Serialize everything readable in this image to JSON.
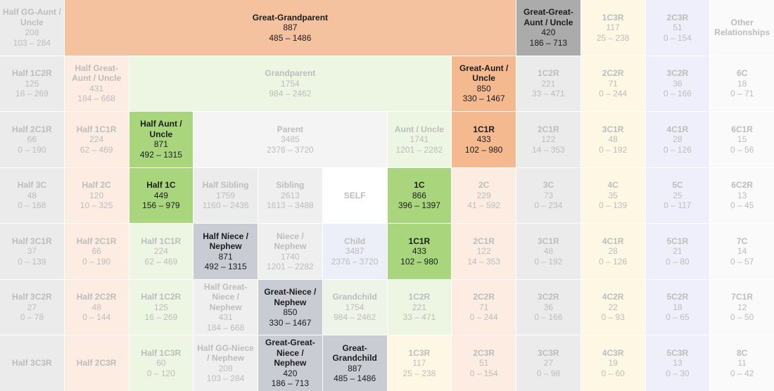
{
  "grid": {
    "rows": [
      [
        {
          "label": "Half GG-Aunt / Uncle",
          "avg": 208,
          "range": "103 – 284",
          "color": "#ebebeb"
        },
        {
          "label": "Great-Grandparent",
          "avg": 887,
          "range": "485 – 1486",
          "color": "#f4c29e",
          "span": 7,
          "highlight": true
        },
        {
          "label": "Great-Great-Aunt / Uncle",
          "avg": 420,
          "range": "186 – 713",
          "color": "#ababab",
          "highlight": true
        },
        {
          "label": "1C3R",
          "avg": 117,
          "range": "25 – 238",
          "color": "#fdf7e4"
        },
        {
          "label": "2C3R",
          "avg": 51,
          "range": "0 – 154",
          "color": "#efeefb"
        },
        {
          "label": "Other Relationships",
          "color": "#fafafa"
        }
      ],
      [
        {
          "label": "Half 1C2R",
          "avg": 125,
          "range": "16 – 269",
          "color": "#ebebeb"
        },
        {
          "label": "Half Great-Aunt / Uncle",
          "avg": 431,
          "range": "184 – 668",
          "color": "#fcece2"
        },
        {
          "label": "Grandparent",
          "avg": 1754,
          "range": "984 – 2462",
          "color": "#ecf6e2",
          "span": 5
        },
        {
          "label": "Great-Aunt / Uncle",
          "avg": 850,
          "range": "330 – 1467",
          "color": "#f4b98f",
          "highlight": true
        },
        {
          "label": "1C2R",
          "avg": 221,
          "range": "33 – 471",
          "color": "#ebebeb"
        },
        {
          "label": "2C2R",
          "avg": 71,
          "range": "0 – 244",
          "color": "#fdf7e4"
        },
        {
          "label": "3C2R",
          "avg": 36,
          "range": "0 – 166",
          "color": "#efeefb"
        },
        {
          "label": "6C",
          "avg": 18,
          "range": "0 – 71",
          "color": "#fafafa"
        }
      ],
      [
        {
          "label": "Half 2C1R",
          "avg": 66,
          "range": "0 – 190",
          "color": "#ebebeb"
        },
        {
          "label": "Half 1C1R",
          "avg": 224,
          "range": "62 – 469",
          "color": "#fcece2"
        },
        {
          "label": "Half Aunt / Uncle",
          "avg": 871,
          "range": "492 – 1315",
          "color": "#a9d67c",
          "highlight": true
        },
        {
          "label": "Parent",
          "avg": 3485,
          "range": "2376 – 3720",
          "color": "#f4f4f4",
          "span": 3
        },
        {
          "label": "Aunt / Uncle",
          "avg": 1741,
          "range": "1201 – 2282",
          "color": "#ecf6e2"
        },
        {
          "label": "1C1R",
          "avg": 433,
          "range": "102 – 980",
          "color": "#f4b98f",
          "highlight": true
        },
        {
          "label": "2C1R",
          "avg": 122,
          "range": "14 – 353",
          "color": "#ebebeb"
        },
        {
          "label": "3C1R",
          "avg": 48,
          "range": "0 – 192",
          "color": "#fdf7e4"
        },
        {
          "label": "4C1R",
          "avg": 28,
          "range": "0 – 126",
          "color": "#efeefb"
        },
        {
          "label": "6C1R",
          "avg": 15,
          "range": "0 – 56",
          "color": "#fafafa"
        }
      ],
      [
        {
          "label": "Half 3C",
          "avg": 48,
          "range": "0 – 168",
          "color": "#ebebeb"
        },
        {
          "label": "Half 2C",
          "avg": 120,
          "range": "10 – 325",
          "color": "#fcece2"
        },
        {
          "label": "Half 1C",
          "avg": 449,
          "range": "156 – 979",
          "color": "#a9d67c",
          "highlight": true
        },
        {
          "label": "Half Sibling",
          "avg": 1759,
          "range": "1160 – 2436",
          "color": "#ececec"
        },
        {
          "label": "Sibling",
          "avg": 2613,
          "range": "1613 – 3488",
          "color": "#efefef"
        },
        {
          "label": "SELF",
          "color": "#ffffff"
        },
        {
          "label": "1C",
          "avg": 866,
          "range": "396 – 1397",
          "color": "#a9d67c",
          "highlight": true
        },
        {
          "label": "2C",
          "avg": 229,
          "range": "41 – 592",
          "color": "#fcece2"
        },
        {
          "label": "3C",
          "avg": 73,
          "range": "0 – 234",
          "color": "#ebebeb"
        },
        {
          "label": "4C",
          "avg": 35,
          "range": "0 – 139",
          "color": "#fdf7e4"
        },
        {
          "label": "5C",
          "avg": 25,
          "range": "0 – 117",
          "color": "#efeefb"
        },
        {
          "label": "6C2R",
          "avg": 13,
          "range": "0 – 45",
          "color": "#fafafa"
        }
      ],
      [
        {
          "label": "Half 3C1R",
          "avg": 37,
          "range": "0 – 139",
          "color": "#ebebeb"
        },
        {
          "label": "Half 2C1R",
          "avg": 66,
          "range": "0 – 190",
          "color": "#fcece2"
        },
        {
          "label": "Half 1C1R",
          "avg": 224,
          "range": "62 – 469",
          "color": "#ecf6e2"
        },
        {
          "label": "Half Niece / Nephew",
          "avg": 871,
          "range": "492 – 1315",
          "color": "#c9ccd3",
          "highlight": true
        },
        {
          "label": "Niece / Nephew",
          "avg": 1740,
          "range": "1201 – 2282",
          "color": "#efefef"
        },
        {
          "label": "Child",
          "avg": 3487,
          "range": "2376 – 3720",
          "color": "#eceef8"
        },
        {
          "label": "1C1R",
          "avg": 433,
          "range": "102 – 980",
          "color": "#a9d67c",
          "highlight": true
        },
        {
          "label": "2C1R",
          "avg": 122,
          "range": "14 – 353",
          "color": "#fcece2"
        },
        {
          "label": "3C1R",
          "avg": 48,
          "range": "0 – 192",
          "color": "#ebebeb"
        },
        {
          "label": "4C1R",
          "avg": 28,
          "range": "0 – 126",
          "color": "#fdf7e4"
        },
        {
          "label": "5C1R",
          "avg": 21,
          "range": "0 – 80",
          "color": "#efeefb"
        },
        {
          "label": "7C",
          "avg": 14,
          "range": "0 – 57",
          "color": "#fafafa"
        }
      ],
      [
        {
          "label": "Half 3C2R",
          "avg": 27,
          "range": "0 – 78",
          "color": "#ebebeb"
        },
        {
          "label": "Half 2C2R",
          "avg": 48,
          "range": "0 – 144",
          "color": "#fcece2"
        },
        {
          "label": "Half 1C2R",
          "avg": 125,
          "range": "16 – 269",
          "color": "#ecf6e2"
        },
        {
          "label": "Half Great-Niece / Nephew",
          "avg": 431,
          "range": "184 – 668",
          "color": "#efefef"
        },
        {
          "label": "Great-Niece / Nephew",
          "avg": 850,
          "range": "330 – 1467",
          "color": "#c9ccd3",
          "highlight": true
        },
        {
          "label": "Grandchild",
          "avg": 1754,
          "range": "984 – 2462",
          "color": "#eef4e8"
        },
        {
          "label": "1C2R",
          "avg": 221,
          "range": "33 – 471",
          "color": "#ecf6e2"
        },
        {
          "label": "2C2R",
          "avg": 71,
          "range": "0 – 244",
          "color": "#fcece2"
        },
        {
          "label": "3C2R",
          "avg": 36,
          "range": "0 – 166",
          "color": "#ebebeb"
        },
        {
          "label": "4C2R",
          "avg": 22,
          "range": "0 – 93",
          "color": "#fdf7e4"
        },
        {
          "label": "5C2R",
          "avg": 18,
          "range": "0 – 65",
          "color": "#efeefb"
        },
        {
          "label": "7C1R",
          "avg": 12,
          "range": "0 – 50",
          "color": "#fafafa"
        }
      ],
      [
        {
          "label": "Half 3C3R",
          "color": "#ebebeb"
        },
        {
          "label": "Half 2C3R",
          "color": "#fcece2"
        },
        {
          "label": "Half 1C3R",
          "avg": 60,
          "range": "0 – 120",
          "color": "#ecf6e2"
        },
        {
          "label": "Half GG-Niece / Nephew",
          "avg": 208,
          "range": "103 – 284",
          "color": "#efefef"
        },
        {
          "label": "Great-Great-Niece / Nephew",
          "avg": 420,
          "range": "186 – 713",
          "color": "#c9ccd3",
          "highlight": true
        },
        {
          "label": "Great-Grandchild",
          "avg": 887,
          "range": "485 – 1486",
          "color": "#c9ccd3",
          "highlight": true
        },
        {
          "label": "1C3R",
          "avg": 117,
          "range": "25 – 238",
          "color": "#fdf7e4"
        },
        {
          "label": "2C3R",
          "avg": 51,
          "range": "0 – 154",
          "color": "#fcece2"
        },
        {
          "label": "3C3R",
          "avg": 27,
          "range": "0 – 98",
          "color": "#ebebeb"
        },
        {
          "label": "4C3R",
          "avg": 19,
          "range": "0 – 60",
          "color": "#fdf7e4"
        },
        {
          "label": "5C3R",
          "avg": 13,
          "range": "0 – 30",
          "color": "#efeefb"
        },
        {
          "label": "8C",
          "avg": 11,
          "range": "0 – 42",
          "color": "#fafafa"
        }
      ]
    ]
  }
}
